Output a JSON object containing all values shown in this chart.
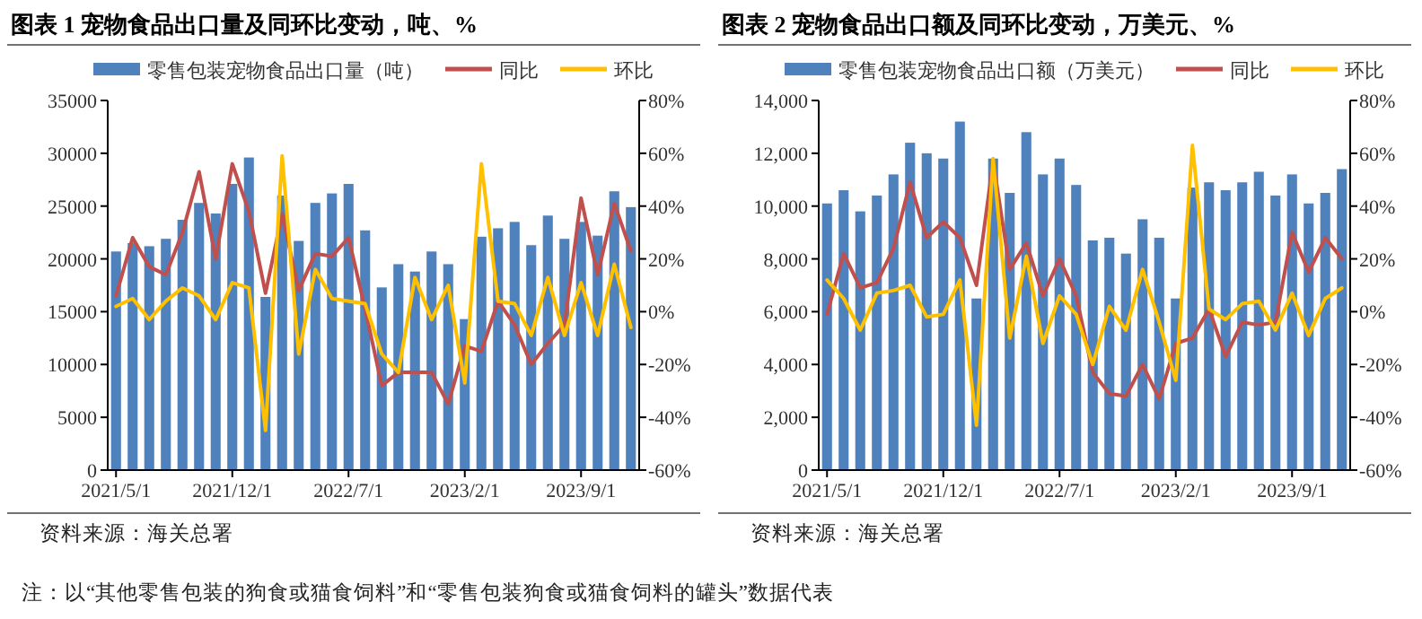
{
  "chart_data": [
    {
      "type": "bar",
      "title": "图表 1 宠物食品出口量及同环比变动，吨、%",
      "legend": "top",
      "grid": false,
      "marker": "none",
      "categories": [
        "2021/5/1",
        null,
        null,
        null,
        null,
        null,
        null,
        "2021/12/1",
        null,
        null,
        null,
        null,
        null,
        null,
        "2022/7/1",
        null,
        null,
        null,
        null,
        null,
        null,
        "2023/2/1",
        null,
        null,
        null,
        null,
        null,
        null,
        "2023/9/1",
        null,
        null,
        null
      ],
      "ylim": [
        0,
        35000
      ],
      "yticks": [
        0,
        5000,
        10000,
        15000,
        20000,
        25000,
        30000,
        35000
      ],
      "y2lim": [
        -60,
        80
      ],
      "y2ticks": [
        {
          "value": -60,
          "label": "-60%"
        },
        {
          "value": -40,
          "label": "-40%"
        },
        {
          "value": -20,
          "label": "-20%"
        },
        {
          "value": 0,
          "label": "0%"
        },
        {
          "value": 20,
          "label": "20%"
        },
        {
          "value": 40,
          "label": "40%"
        },
        {
          "value": 60,
          "label": "60%"
        },
        {
          "value": 80,
          "label": "80%"
        }
      ],
      "series": [
        {
          "name": "零售包装宠物食品出口量（吨）",
          "color": "#4f81bd",
          "values": [
            20700,
            21500,
            21200,
            21900,
            23700,
            25300,
            24300,
            27100,
            29600,
            16400,
            26000,
            21700,
            25300,
            26200,
            27100,
            22700,
            17300,
            19500,
            18800,
            20700,
            19500,
            14300,
            22100,
            22900,
            23500,
            21300,
            24100,
            21900,
            23500,
            22200,
            26400,
            24900
          ]
        },
        {
          "name": "同比",
          "type": "line",
          "axis": "y2",
          "color": "#c0504d",
          "values": [
            6,
            28,
            17,
            14,
            30,
            53,
            20,
            56,
            38,
            7,
            37,
            8,
            22,
            21,
            28,
            1,
            -28,
            -23,
            -23,
            -23,
            -35,
            -13,
            -15,
            4,
            -5,
            -20,
            -12,
            -5,
            43,
            14,
            41,
            23
          ]
        },
        {
          "name": "环比",
          "type": "line",
          "axis": "y2",
          "color": "#ffc000",
          "values": [
            2,
            5,
            -3,
            4,
            9,
            6,
            -3,
            11,
            9,
            -45,
            59,
            -16,
            16,
            5,
            4,
            3,
            -16,
            -23,
            13,
            -3,
            10,
            -27,
            56,
            4,
            3,
            -9,
            13,
            -9,
            11,
            -9,
            18,
            -6
          ]
        }
      ],
      "annotations": [
        "资料来源：海关总署",
        "注：以“其他零售包装的狗食或猫食饲料”和“零售包装狗食或猫食饲料的罐头”数据代表"
      ]
    },
    {
      "type": "bar",
      "title": "图表 2 宠物食品出口额及同环比变动，万美元、%",
      "legend": "top",
      "grid": false,
      "marker": "none",
      "categories": [
        "2021/5/1",
        null,
        null,
        null,
        null,
        null,
        null,
        "2021/12/1",
        null,
        null,
        null,
        null,
        null,
        null,
        "2022/7/1",
        null,
        null,
        null,
        null,
        null,
        null,
        "2023/2/1",
        null,
        null,
        null,
        null,
        null,
        null,
        "2023/9/1",
        null,
        null,
        null
      ],
      "ylim": [
        0,
        14000
      ],
      "yticks": [
        0,
        {
          "value": 2000,
          "label": "2,000"
        },
        {
          "value": 4000,
          "label": "4,000"
        },
        {
          "value": 6000,
          "label": "6,000"
        },
        {
          "value": 8000,
          "label": "8,000"
        },
        {
          "value": 10000,
          "label": "10,000"
        },
        {
          "value": 12000,
          "label": "12,000"
        },
        {
          "value": 14000,
          "label": "14,000"
        }
      ],
      "y2lim": [
        -60,
        80
      ],
      "y2ticks": [
        {
          "value": -60,
          "label": "-60%"
        },
        {
          "value": -40,
          "label": "-40%"
        },
        {
          "value": -20,
          "label": "-20%"
        },
        {
          "value": 0,
          "label": "0%"
        },
        {
          "value": 20,
          "label": "20%"
        },
        {
          "value": 40,
          "label": "40%"
        },
        {
          "value": 60,
          "label": "60%"
        },
        {
          "value": 80,
          "label": "80%"
        }
      ],
      "series": [
        {
          "name": "零售包装宠物食品出口额（万美元）",
          "color": "#4f81bd",
          "values": [
            10100,
            10600,
            9800,
            10400,
            11200,
            12400,
            12000,
            11800,
            13200,
            6500,
            11800,
            10500,
            12800,
            11200,
            11800,
            10800,
            8700,
            8800,
            8200,
            9500,
            8800,
            6500,
            10700,
            10900,
            10600,
            10900,
            11300,
            10400,
            11200,
            10100,
            10500,
            11400
          ]
        },
        {
          "name": "同比",
          "type": "line",
          "axis": "y2",
          "color": "#c0504d",
          "values": [
            -1,
            22,
            9,
            11,
            24,
            49,
            28,
            34,
            28,
            10,
            57,
            16,
            26,
            6,
            20,
            6,
            -23,
            -31,
            -32,
            -20,
            -33,
            -12,
            -10,
            1,
            -17,
            -4,
            -5,
            -4,
            30,
            15,
            28,
            20
          ]
        },
        {
          "name": "环比",
          "type": "line",
          "axis": "y2",
          "color": "#ffc000",
          "values": [
            12,
            5,
            -7,
            7,
            8,
            10,
            -2,
            -1,
            12,
            -43,
            58,
            -10,
            21,
            -12,
            6,
            -1,
            -20,
            2,
            -7,
            16,
            -4,
            -26,
            63,
            1,
            -3,
            3,
            4,
            -7,
            7,
            -9,
            5,
            9
          ]
        }
      ],
      "annotations": [
        "资料来源：海关总署"
      ]
    }
  ]
}
